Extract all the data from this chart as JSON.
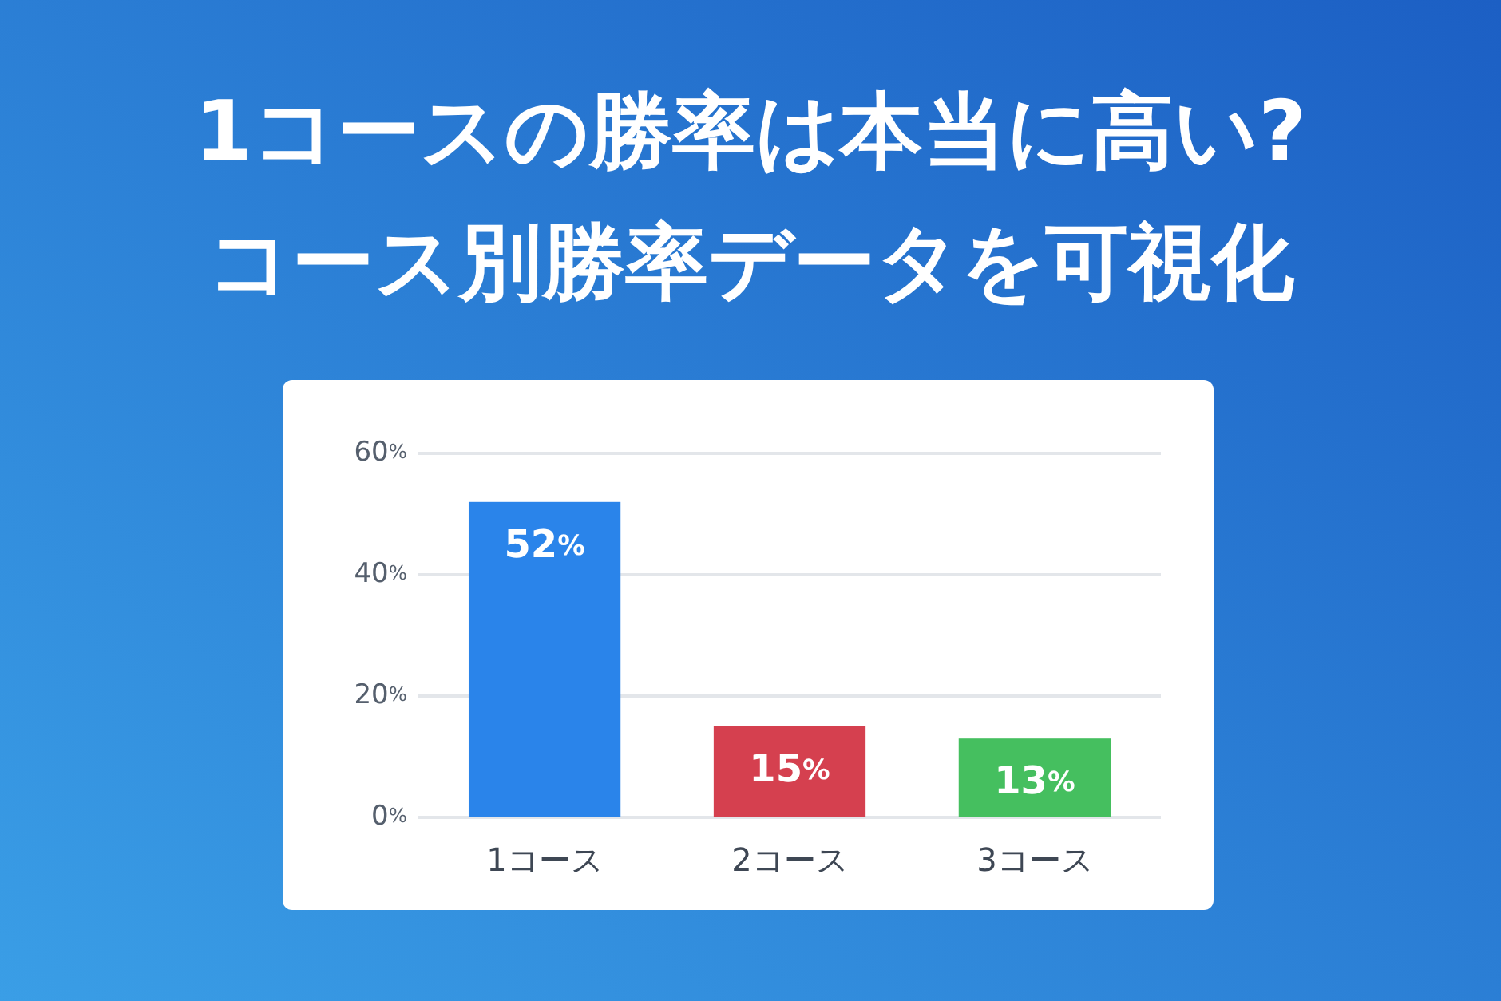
{
  "chart_data": {
    "type": "bar",
    "title": "1コースの勝率は本当に高い?\nコース別勝率データを可視化",
    "categories": [
      "1コース",
      "2コース",
      "3コース"
    ],
    "values": [
      52,
      15,
      13
    ],
    "colors": [
      "#2a84ea",
      "#d5404f",
      "#45bf5f"
    ],
    "value_labels": [
      "52%",
      "15%",
      "13%"
    ],
    "ylim": [
      0,
      60
    ],
    "yticks": [
      {
        "value": 0,
        "label": "0%"
      },
      {
        "value": 20,
        "label": "20%"
      },
      {
        "value": 40,
        "label": "40%"
      },
      {
        "value": 60,
        "label": "60%"
      }
    ],
    "grid": "y"
  }
}
